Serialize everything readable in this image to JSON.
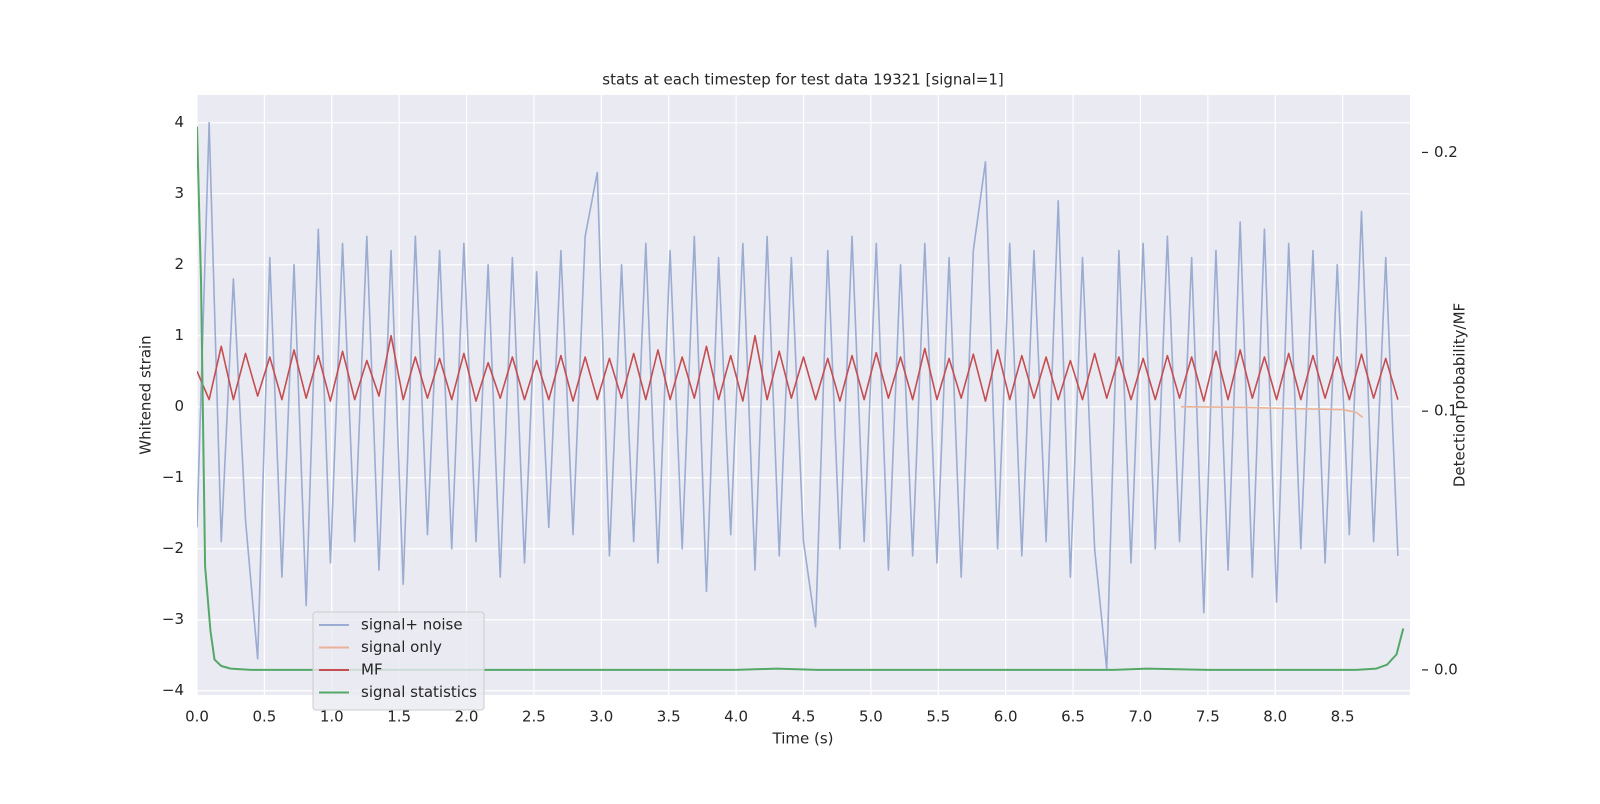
{
  "chart_data": {
    "type": "line",
    "title": "stats at each timestep for test data 19321 [signal=1]",
    "xlabel": "Time (s)",
    "ylabel": "Whitened strain",
    "y2label": "Detection probability/MF",
    "x": [
      0,
      0.09,
      0.18,
      0.27,
      0.36,
      0.45,
      0.54,
      0.63,
      0.72,
      0.81,
      0.9,
      0.99,
      1.08,
      1.17,
      1.26,
      1.35,
      1.44,
      1.53,
      1.62,
      1.71,
      1.8,
      1.89,
      1.98,
      2.07,
      2.16,
      2.25,
      2.34,
      2.43,
      2.52,
      2.61,
      2.7,
      2.79,
      2.88,
      2.97,
      3.06,
      3.15,
      3.24,
      3.33,
      3.42,
      3.51,
      3.6,
      3.69,
      3.78,
      3.87,
      3.96,
      4.05,
      4.14,
      4.23,
      4.32,
      4.41,
      4.5,
      4.59,
      4.68,
      4.77,
      4.86,
      4.95,
      5.04,
      5.13,
      5.22,
      5.31,
      5.4,
      5.49,
      5.58,
      5.67,
      5.76,
      5.85,
      5.94,
      6.03,
      6.12,
      6.21,
      6.3,
      6.39,
      6.48,
      6.57,
      6.66,
      6.75,
      6.84,
      6.93,
      7.02,
      7.11,
      7.2,
      7.29,
      7.38,
      7.47,
      7.56,
      7.65,
      7.74,
      7.83,
      7.92,
      8.01,
      8.1,
      8.19,
      8.28,
      8.37,
      8.46,
      8.55,
      8.64,
      8.73,
      8.82,
      8.91
    ],
    "series": [
      {
        "name": "signal+ noise",
        "color": "#9aacd1",
        "values": [
          -1.7,
          4.0,
          -1.9,
          1.8,
          -1.6,
          -3.55,
          2.1,
          -2.4,
          2.0,
          -2.8,
          2.5,
          -2.2,
          2.3,
          -1.9,
          2.4,
          -2.3,
          2.2,
          -2.5,
          2.4,
          -1.8,
          2.2,
          -2.0,
          2.3,
          -1.9,
          2.0,
          -2.4,
          2.1,
          -2.2,
          1.9,
          -1.7,
          2.2,
          -1.8,
          2.4,
          3.3,
          -2.1,
          2.0,
          -1.9,
          2.3,
          -2.2,
          2.2,
          -2.0,
          2.4,
          -2.6,
          2.1,
          -1.8,
          2.3,
          -2.3,
          2.4,
          -2.1,
          2.1,
          -1.9,
          -3.1,
          2.2,
          -2.0,
          2.4,
          -1.9,
          2.3,
          -2.3,
          2.0,
          -2.1,
          2.3,
          -2.2,
          2.1,
          -2.4,
          2.2,
          3.45,
          -2.0,
          2.3,
          -2.1,
          2.2,
          -1.9,
          2.9,
          -2.4,
          2.1,
          -2.0,
          -3.7,
          2.2,
          -2.2,
          2.3,
          -2.0,
          2.4,
          -1.9,
          2.1,
          -2.9,
          2.2,
          -2.3,
          2.6,
          -2.4,
          2.5,
          -2.75,
          2.3,
          -2.0,
          2.2,
          -2.2,
          2.0,
          -1.8,
          2.75,
          -1.9,
          2.1,
          -2.1
        ]
      },
      {
        "name": "signal only",
        "color": "#eab399",
        "x": [
          7.3,
          7.8,
          8.2,
          8.5,
          8.6,
          8.65
        ],
        "values": [
          0.0,
          -0.01,
          -0.03,
          -0.04,
          -0.08,
          -0.15
        ]
      },
      {
        "name": "MF",
        "color": "#c44e52",
        "values": [
          0.5,
          0.1,
          0.85,
          0.1,
          0.75,
          0.15,
          0.7,
          0.1,
          0.8,
          0.12,
          0.72,
          0.08,
          0.78,
          0.1,
          0.65,
          0.15,
          1.0,
          0.1,
          0.7,
          0.12,
          0.68,
          0.1,
          0.75,
          0.08,
          0.62,
          0.12,
          0.7,
          0.1,
          0.65,
          0.1,
          0.72,
          0.08,
          0.7,
          0.1,
          0.68,
          0.12,
          0.75,
          0.1,
          0.8,
          0.1,
          0.7,
          0.12,
          0.85,
          0.1,
          0.72,
          0.08,
          1.0,
          0.1,
          0.78,
          0.12,
          0.7,
          0.1,
          0.68,
          0.08,
          0.72,
          0.1,
          0.76,
          0.12,
          0.7,
          0.1,
          0.82,
          0.1,
          0.68,
          0.12,
          0.74,
          0.08,
          0.8,
          0.1,
          0.72,
          0.12,
          0.7,
          0.1,
          0.65,
          0.1,
          0.75,
          0.12,
          0.7,
          0.1,
          0.68,
          0.1,
          0.72,
          0.12,
          0.7,
          0.08,
          0.78,
          0.1,
          0.8,
          0.12,
          0.7,
          0.1,
          0.75,
          0.1,
          0.72,
          0.12,
          0.7,
          0.1,
          0.74,
          0.12,
          0.68,
          0.1
        ]
      },
      {
        "name": "signal statistics",
        "color": "#55a868",
        "axis": "y2",
        "x": [
          0,
          0.03,
          0.06,
          0.1,
          0.13,
          0.18,
          0.25,
          0.4,
          1.0,
          2.0,
          3.0,
          4.0,
          4.3,
          4.6,
          5.0,
          5.5,
          6.0,
          6.4,
          6.8,
          7.05,
          7.5,
          8.0,
          8.6,
          8.75,
          8.83,
          8.9,
          8.95
        ],
        "values": [
          0.21,
          0.15,
          0.04,
          0.015,
          0.004,
          0.0015,
          0.0005,
          0.0,
          0.0,
          0.0,
          0.0,
          0.0,
          0.0005,
          0.0,
          0.0,
          0.0,
          0.0,
          0.0,
          0.0,
          0.0005,
          0.0,
          0.0,
          0.0,
          0.0005,
          0.002,
          0.006,
          0.016
        ]
      }
    ],
    "xlim": [
      0,
      9.0
    ],
    "ylim": [
      -4.06,
      4.39
    ],
    "y2lim": [
      -0.0097,
      0.2222
    ],
    "xticks": [
      {
        "value": 0,
        "label": "0.0"
      },
      0.5,
      {
        "value": 1,
        "label": "1.0"
      },
      1.5,
      {
        "value": 2,
        "label": "2.0"
      },
      2.5,
      {
        "value": 3,
        "label": "3.0"
      },
      3.5,
      {
        "value": 4,
        "label": "4.0"
      },
      4.5,
      {
        "value": 5,
        "label": "5.0"
      },
      5.5,
      {
        "value": 6,
        "label": "6.0"
      },
      6.5,
      {
        "value": 7,
        "label": "7.0"
      },
      7.5,
      {
        "value": 8,
        "label": "8.0"
      },
      8.5
    ],
    "yticks": [
      {
        "value": -4,
        "label": "−4"
      },
      {
        "value": -3,
        "label": "−3"
      },
      {
        "value": -2,
        "label": "−2"
      },
      {
        "value": -1,
        "label": "−1"
      },
      0,
      1,
      2,
      3,
      4
    ],
    "y2ticks": [
      {
        "value": 0,
        "label": "0.0"
      },
      0.1,
      0.2
    ],
    "grid": true,
    "legend": "lower left"
  }
}
